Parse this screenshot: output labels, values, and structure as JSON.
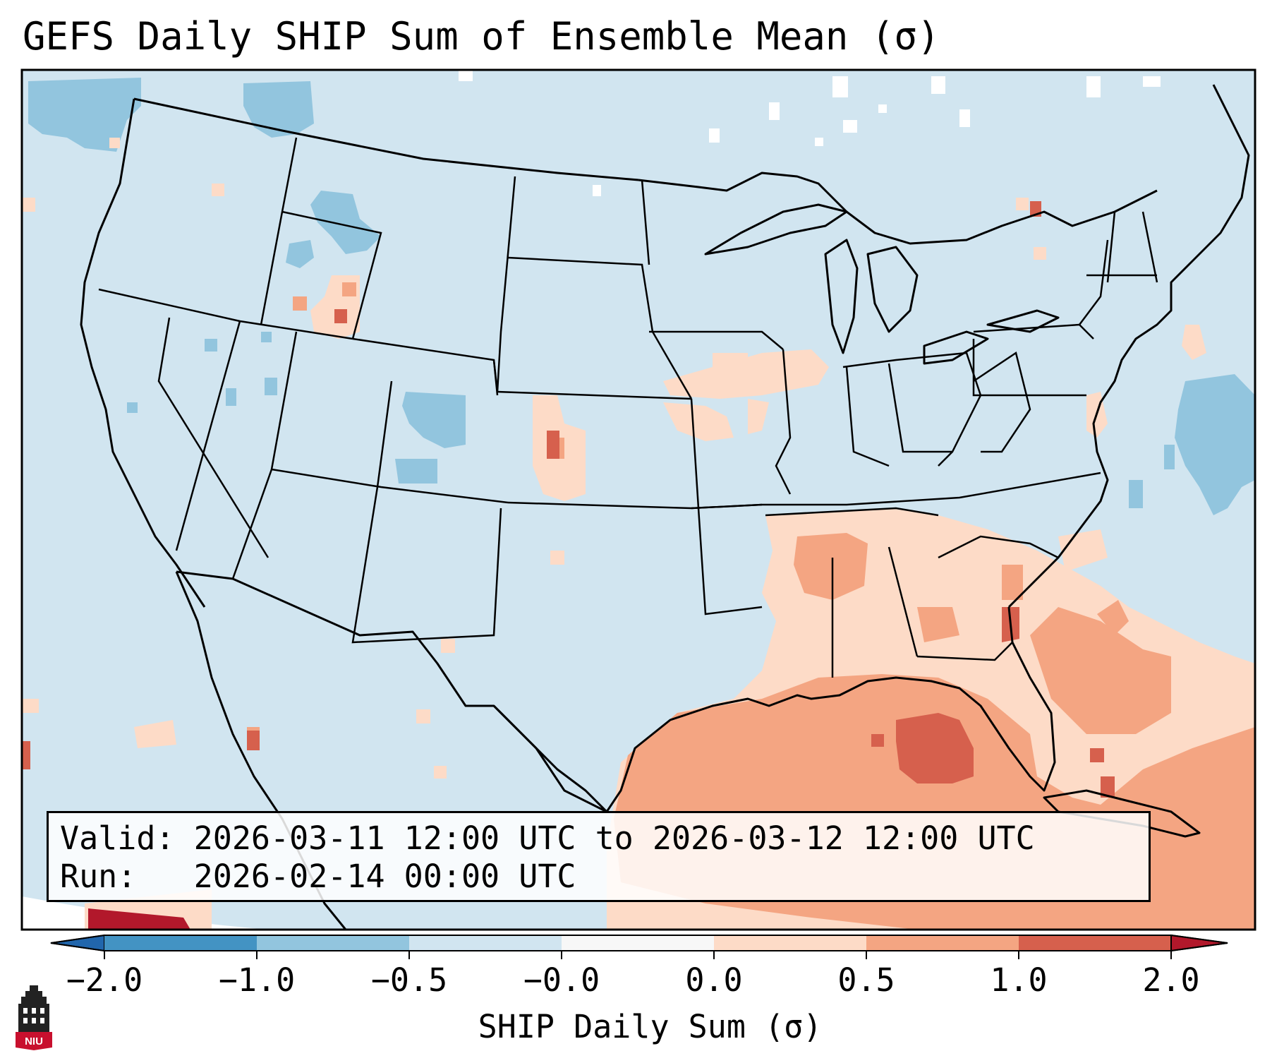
{
  "title": "GEFS Daily SHIP Sum of Ensemble Mean (σ)",
  "info": {
    "valid_label": "Valid:",
    "valid_value": "2026-03-11 12:00 UTC to 2026-03-12 12:00 UTC",
    "run_label": "Run:",
    "run_value": "2026-02-14 00:00 UTC"
  },
  "colorbar": {
    "label": "SHIP Daily Sum (σ)",
    "ticks": [
      "−2.0",
      "−1.0",
      "−0.5",
      "−0.0",
      "0.0",
      "0.5",
      "1.0",
      "2.0"
    ],
    "colors": {
      "lt_-2": "#2166ac",
      "-2_-1": "#4393c3",
      "-1_-0.5": "#92c5de",
      "-0.5_0": "#d1e5f0",
      "0_0": "#f7f7f7",
      "0_0.5": "#fddbc7",
      "0.5_1": "#f4a582",
      "1_2": "#d6604d",
      "gt_2": "#b2182b"
    }
  },
  "map": {
    "projection": "Lambert Conformal (CONUS)",
    "background_color": "#d1e5f0"
  },
  "logo": {
    "text": "NIU",
    "icon": "niu-tower-icon"
  }
}
